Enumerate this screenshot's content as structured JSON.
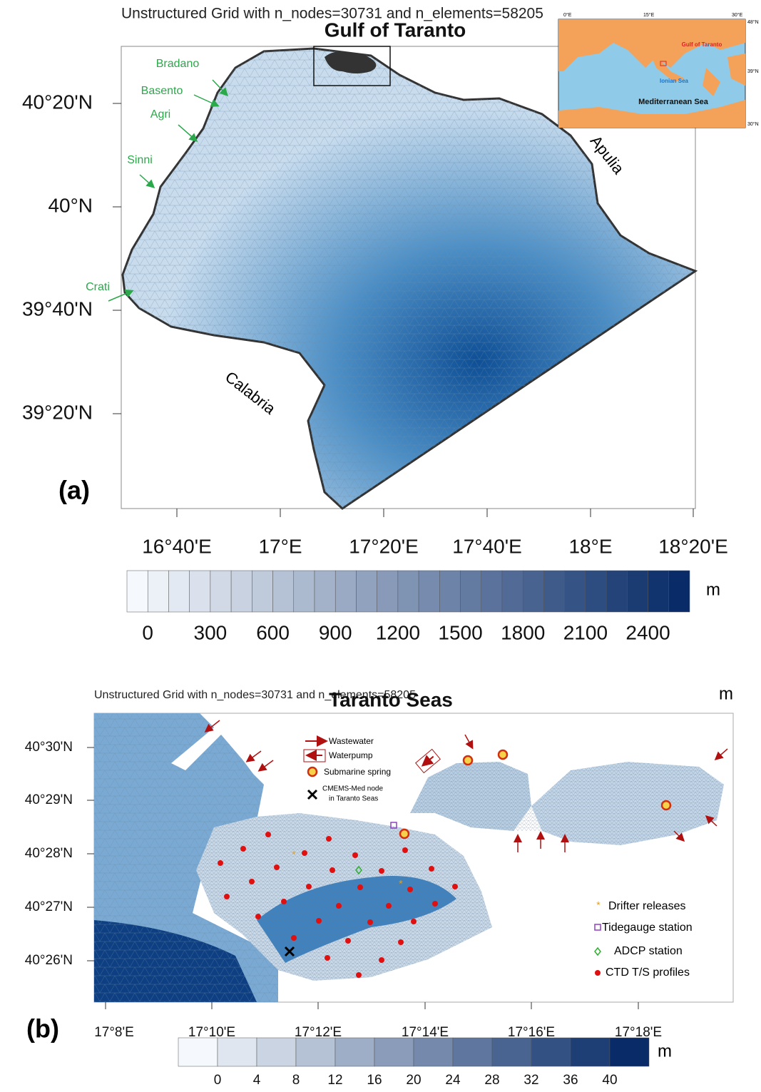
{
  "panel_a": {
    "header": "Unstructured Grid with n_nodes=30731 and n_elements=58205",
    "title": "Gulf of Taranto",
    "unit": "m",
    "panel_label": "(a)",
    "y_ticks": [
      "40°20'N",
      "40°N",
      "39°40'N",
      "39°20'N"
    ],
    "x_ticks": [
      "16°40'E",
      "17°E",
      "17°20'E",
      "17°40'E",
      "18°E",
      "18°20'E"
    ],
    "colorbar_labels": [
      "0",
      "300",
      "600",
      "900",
      "1200",
      "1500",
      "1800",
      "2100",
      "2400"
    ],
    "rivers": [
      "Bradano",
      "Basento",
      "Agri",
      "Sinni",
      "Crati"
    ],
    "regions": [
      "Apulia",
      "Calabria"
    ],
    "inset": {
      "labels": [
        "Gulf of Taranto",
        "Ionian Sea",
        "Mediterranean Sea"
      ],
      "lon": [
        "0°E",
        "15°E",
        "30°E"
      ],
      "lat": [
        "48°N",
        "39°N",
        "30°N"
      ]
    }
  },
  "panel_b": {
    "header": "Unstructured Grid with n_nodes=30731 and n_elements=58205",
    "title": "Taranto Seas",
    "unit": "m",
    "panel_label": "(b)",
    "y_ticks": [
      "40°30'N",
      "40°29'N",
      "40°28'N",
      "40°27'N",
      "40°26'N"
    ],
    "x_ticks": [
      "17°8'E",
      "17°10'E",
      "17°12'E",
      "17°14'E",
      "17°16'E",
      "17°18'E"
    ],
    "colorbar_labels": [
      "0",
      "4",
      "8",
      "12",
      "16",
      "20",
      "24",
      "28",
      "32",
      "36",
      "40"
    ],
    "legend_top": [
      "Wastewater",
      "Waterpump",
      "Submarine spring",
      "CMEMS-Med node",
      "in Taranto Seas"
    ],
    "legend_bottom": [
      "Drifter releases",
      "Tidegauge station",
      "ADCP station",
      "CTD T/S profiles"
    ]
  }
}
